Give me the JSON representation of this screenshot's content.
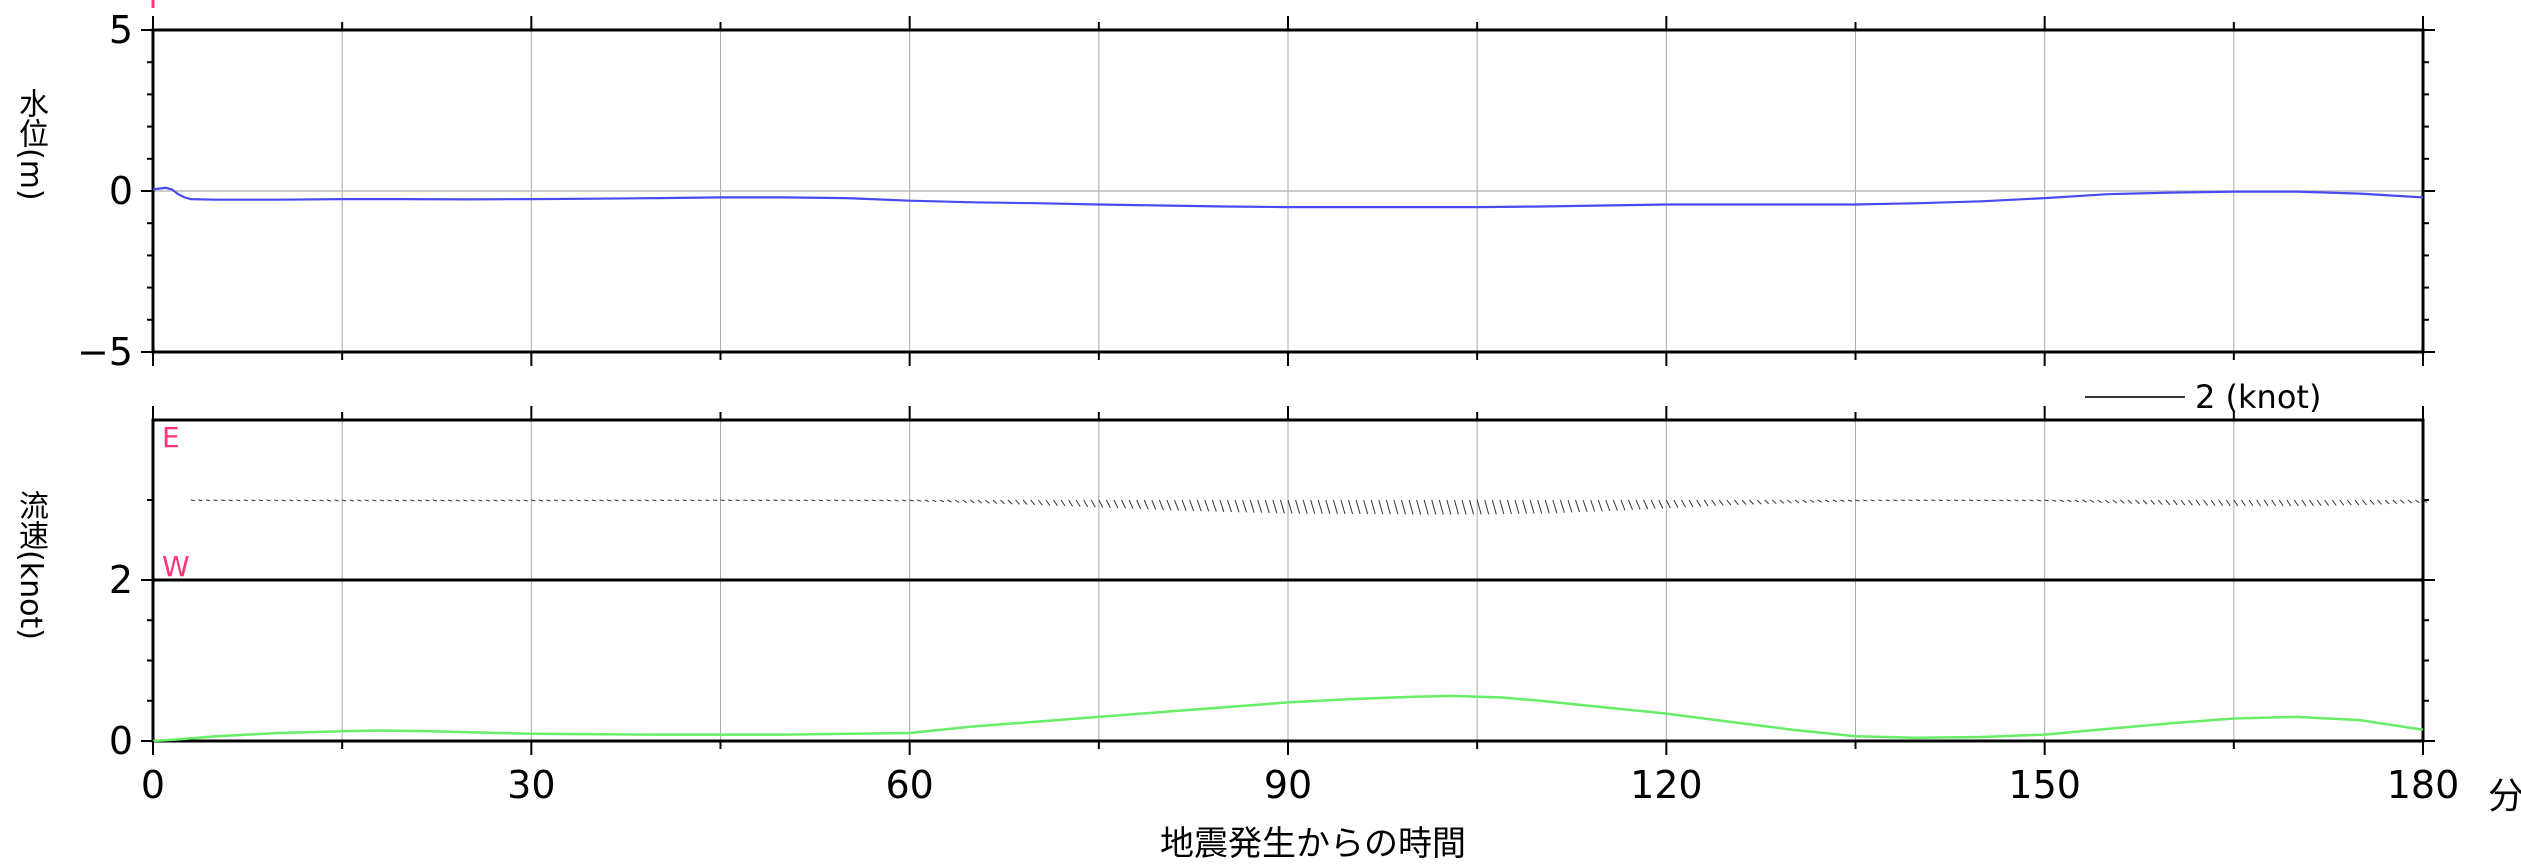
{
  "chart_data": [
    {
      "type": "line",
      "ylabel": "水位(m)",
      "ylim": [
        -5,
        5
      ],
      "yticks": [
        "5",
        "0",
        "−5"
      ],
      "xlim": [
        0,
        180
      ],
      "grid": true,
      "series": [
        {
          "color": "#4a4af0",
          "x": [
            0,
            1,
            1.5,
            2,
            2.5,
            3,
            5,
            10,
            15,
            20,
            25,
            30,
            35,
            40,
            45,
            50,
            55,
            60,
            65,
            70,
            75,
            80,
            85,
            90,
            95,
            100,
            105,
            110,
            115,
            120,
            125,
            130,
            135,
            140,
            145,
            150,
            155,
            160,
            165,
            170,
            175,
            180
          ],
          "y": [
            0.05,
            0.1,
            0.05,
            -0.1,
            -0.2,
            -0.25,
            -0.27,
            -0.27,
            -0.25,
            -0.25,
            -0.26,
            -0.25,
            -0.24,
            -0.22,
            -0.2,
            -0.2,
            -0.22,
            -0.3,
            -0.35,
            -0.38,
            -0.42,
            -0.45,
            -0.48,
            -0.5,
            -0.5,
            -0.5,
            -0.5,
            -0.48,
            -0.45,
            -0.42,
            -0.42,
            -0.42,
            -0.42,
            -0.38,
            -0.32,
            -0.22,
            -0.1,
            -0.05,
            -0.02,
            -0.02,
            -0.08,
            -0.2
          ]
        }
      ]
    },
    {
      "type": "line",
      "ylabel": "流速(knot)",
      "ylim": [
        0,
        2
      ],
      "yticks": [
        "2",
        "0"
      ],
      "xlim": [
        0,
        180
      ],
      "xlabel": "地震発生からの時間",
      "xunit": "分",
      "xticks": [
        "0",
        "30",
        "60",
        "90",
        "120",
        "150",
        "180"
      ],
      "grid": true,
      "series": [
        {
          "color": "#66ee66",
          "x": [
            0,
            2,
            5,
            10,
            15,
            18,
            22,
            30,
            40,
            50,
            60,
            65,
            70,
            75,
            80,
            85,
            90,
            95,
            100,
            103,
            107,
            110,
            115,
            120,
            125,
            130,
            135,
            140,
            145,
            150,
            155,
            160,
            165,
            170,
            175,
            180
          ],
          "y": [
            0,
            0.02,
            0.06,
            0.1,
            0.12,
            0.13,
            0.12,
            0.09,
            0.08,
            0.08,
            0.1,
            0.18,
            0.24,
            0.3,
            0.36,
            0.42,
            0.48,
            0.52,
            0.55,
            0.56,
            0.54,
            0.5,
            0.42,
            0.34,
            0.24,
            0.14,
            0.06,
            0.04,
            0.05,
            0.08,
            0.15,
            0.22,
            0.28,
            0.3,
            0.26,
            0.14
          ]
        }
      ]
    },
    {
      "type": "scatter",
      "legend": "2 (knot)",
      "direction_labels": {
        "east": "E",
        "west": "W"
      },
      "note": "current vector stick plot",
      "x": [
        0,
        15,
        30,
        45,
        60,
        65,
        70,
        75,
        80,
        85,
        90,
        95,
        100,
        105,
        110,
        115,
        120,
        125,
        130,
        135,
        140,
        150,
        155,
        160,
        165,
        170,
        175,
        180
      ],
      "v": [
        -0.01,
        -0.02,
        -0.02,
        -0.01,
        -0.02,
        -0.06,
        -0.1,
        -0.15,
        -0.2,
        -0.24,
        -0.27,
        -0.28,
        -0.29,
        -0.29,
        -0.27,
        -0.22,
        -0.16,
        -0.1,
        -0.06,
        -0.02,
        -0.01,
        -0.02,
        -0.06,
        -0.1,
        -0.12,
        -0.12,
        -0.1,
        -0.05
      ]
    }
  ],
  "colors": {
    "direction_label": "#ff3377",
    "water_level_line": "#4a4af0",
    "speed_line": "#66ee66",
    "vector_line": "#333333",
    "frame": "#000000",
    "grid": "#aaaaaa",
    "zero_line": "#bbbbbb"
  }
}
